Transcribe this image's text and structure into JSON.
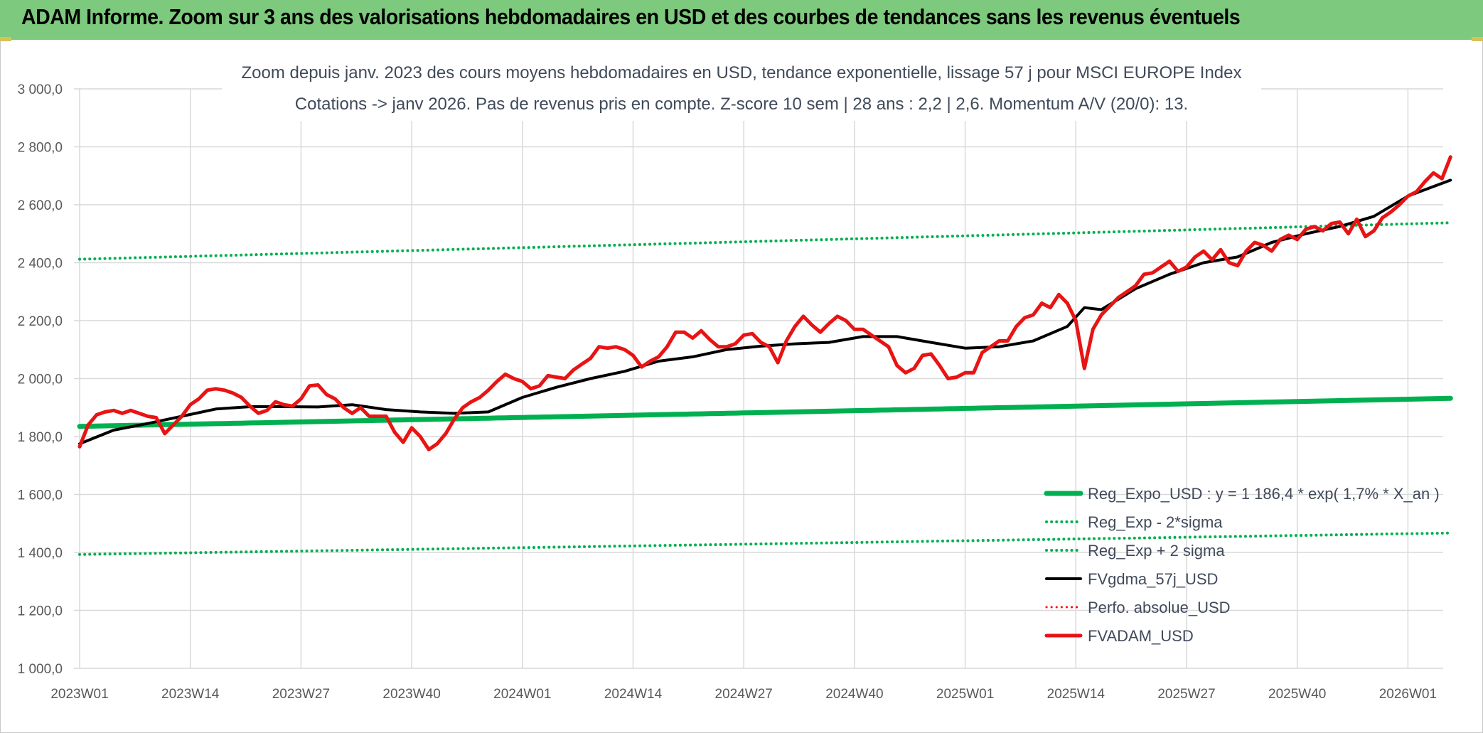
{
  "header": {
    "title": "ADAM Informe. Zoom sur 3 ans des valorisations hebdomadaires en USD et des courbes de tendances sans les revenus éventuels",
    "band_color": "#7dc97d"
  },
  "chart_data": {
    "type": "line",
    "title_line1": "Zoom depuis janv. 2023 des cours moyens hebdomadaires en USD, tendance exponentielle, lissage 57 j pour MSCI EUROPE Index",
    "title_line2": "Cotations -> janv 2026. Pas de revenus pris en compte. Z-score 10 sem | 28 ans : 2,2 | 2,6. Momentum A/V (20/0): 13.",
    "ylim": [
      1000,
      3000
    ],
    "y_ticks": [
      "1 000,0",
      "1 200,0",
      "1 400,0",
      "1 600,0",
      "1 800,0",
      "2 000,0",
      "2 200,0",
      "2 400,0",
      "2 600,0",
      "2 800,0",
      "3 000,0"
    ],
    "y_tick_values": [
      1000,
      1200,
      1400,
      1600,
      1800,
      2000,
      2200,
      2400,
      2600,
      2800,
      3000
    ],
    "x_ticks": [
      "2023W01",
      "2023W14",
      "2023W27",
      "2023W40",
      "2024W01",
      "2024W14",
      "2024W27",
      "2024W40",
      "2025W01",
      "2025W14",
      "2025W27",
      "2025W40",
      "2026W01"
    ],
    "x_tick_weeks": [
      0,
      13,
      26,
      39,
      52,
      65,
      78,
      91,
      104,
      117,
      130,
      143,
      156
    ],
    "x_range": [
      0,
      161
    ],
    "grid": true,
    "legend_position": "bottom-right",
    "series": [
      {
        "name": "Reg_Expo_USD : y = 1 186,4 * exp( 1,7% *  X_an )",
        "color": "#00b050",
        "style": "solid",
        "width": 7,
        "x": [
          0,
          161
        ],
        "values": [
          1835,
          1932
        ]
      },
      {
        "name": "Reg_Exp - 2*sigma",
        "color": "#00b050",
        "style": "dotted",
        "width": 4,
        "x": [
          0,
          161
        ],
        "values": [
          1393,
          1467
        ]
      },
      {
        "name": "Reg_Exp + 2 sigma",
        "color": "#00b050",
        "style": "dotted",
        "width": 4,
        "x": [
          0,
          161
        ],
        "values": [
          2412,
          2538
        ]
      },
      {
        "name": "FVgdma_57j_USD",
        "color": "#000000",
        "style": "solid",
        "width": 4,
        "x": [
          0,
          4,
          8,
          12,
          16,
          20,
          24,
          28,
          32,
          36,
          40,
          44,
          48,
          52,
          56,
          60,
          64,
          68,
          72,
          76,
          80,
          84,
          88,
          92,
          96,
          100,
          104,
          108,
          112,
          116,
          118,
          120,
          124,
          128,
          132,
          136,
          140,
          144,
          148,
          152,
          156,
          161
        ],
        "values": [
          1775,
          1822,
          1845,
          1870,
          1895,
          1903,
          1903,
          1902,
          1910,
          1893,
          1885,
          1880,
          1885,
          1935,
          1970,
          2000,
          2025,
          2060,
          2075,
          2100,
          2112,
          2120,
          2125,
          2145,
          2145,
          2125,
          2105,
          2110,
          2130,
          2180,
          2245,
          2238,
          2310,
          2360,
          2400,
          2420,
          2470,
          2500,
          2525,
          2560,
          2630,
          2685
        ]
      },
      {
        "name": "Perfo. absolue_USD",
        "color": "#ff0000",
        "style": "dotted",
        "width": 3,
        "x": [],
        "values": []
      },
      {
        "name": "FVADAM_USD",
        "color": "#e81414",
        "style": "solid",
        "width": 5,
        "x": [
          0,
          1,
          2,
          3,
          4,
          5,
          6,
          7,
          8,
          9,
          10,
          11,
          12,
          13,
          14,
          15,
          16,
          17,
          18,
          19,
          20,
          21,
          22,
          23,
          24,
          25,
          26,
          27,
          28,
          29,
          30,
          31,
          32,
          33,
          34,
          35,
          36,
          37,
          38,
          39,
          40,
          41,
          42,
          43,
          44,
          45,
          46,
          47,
          48,
          49,
          50,
          51,
          52,
          53,
          54,
          55,
          56,
          57,
          58,
          59,
          60,
          61,
          62,
          63,
          64,
          65,
          66,
          67,
          68,
          69,
          70,
          71,
          72,
          73,
          74,
          75,
          76,
          77,
          78,
          79,
          80,
          81,
          82,
          83,
          84,
          85,
          86,
          87,
          88,
          89,
          90,
          91,
          92,
          93,
          94,
          95,
          96,
          97,
          98,
          99,
          100,
          101,
          102,
          103,
          104,
          105,
          106,
          107,
          108,
          109,
          110,
          111,
          112,
          113,
          114,
          115,
          116,
          117,
          118,
          119,
          120,
          121,
          122,
          123,
          124,
          125,
          126,
          127,
          128,
          129,
          130,
          131,
          132,
          133,
          134,
          135,
          136,
          137,
          138,
          139,
          140,
          141,
          142,
          143,
          144,
          145,
          146,
          147,
          148,
          149,
          150,
          151,
          152,
          153,
          154,
          155,
          156,
          157,
          158,
          159,
          160,
          161
        ],
        "values": [
          1765,
          1840,
          1875,
          1885,
          1890,
          1880,
          1890,
          1880,
          1870,
          1865,
          1810,
          1840,
          1870,
          1910,
          1930,
          1960,
          1965,
          1960,
          1950,
          1935,
          1905,
          1880,
          1890,
          1920,
          1910,
          1905,
          1930,
          1975,
          1978,
          1945,
          1930,
          1900,
          1880,
          1900,
          1870,
          1870,
          1870,
          1815,
          1780,
          1830,
          1800,
          1755,
          1775,
          1810,
          1860,
          1900,
          1920,
          1935,
          1960,
          1990,
          2015,
          2000,
          1990,
          1965,
          1975,
          2010,
          2005,
          2000,
          2030,
          2050,
          2070,
          2110,
          2105,
          2110,
          2100,
          2080,
          2040,
          2060,
          2075,
          2110,
          2160,
          2160,
          2140,
          2165,
          2135,
          2110,
          2110,
          2120,
          2150,
          2155,
          2125,
          2110,
          2055,
          2130,
          2180,
          2215,
          2185,
          2160,
          2190,
          2215,
          2200,
          2170,
          2170,
          2150,
          2130,
          2110,
          2045,
          2020,
          2035,
          2080,
          2085,
          2045,
          2000,
          2005,
          2020,
          2020,
          2090,
          2110,
          2130,
          2130,
          2180,
          2210,
          2220,
          2260,
          2245,
          2290,
          2260,
          2200,
          2035,
          2170,
          2220,
          2250,
          2280,
          2300,
          2320,
          2360,
          2365,
          2385,
          2405,
          2370,
          2385,
          2420,
          2440,
          2410,
          2445,
          2400,
          2390,
          2440,
          2470,
          2460,
          2440,
          2480,
          2495,
          2480,
          2515,
          2525,
          2510,
          2535,
          2540,
          2500,
          2550,
          2490,
          2510,
          2555,
          2575,
          2600,
          2630,
          2645,
          2680,
          2710,
          2690,
          2765
        ]
      }
    ]
  }
}
